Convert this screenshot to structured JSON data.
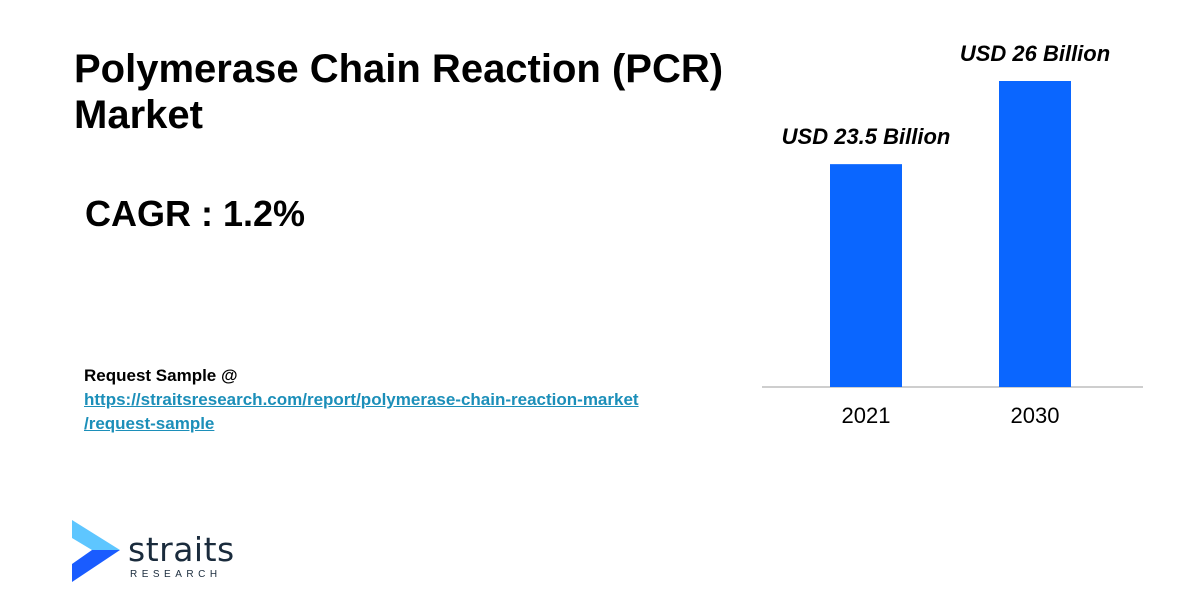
{
  "title": {
    "line1": "Polymerase Chain Reaction (PCR)",
    "line2": "Market"
  },
  "cagr": "CAGR : 1.2%",
  "request": {
    "label": "Request Sample @",
    "link_line1": "https://straitsresearch.com/report/polymerase-chain-reaction-market",
    "link_line2": "/request-sample"
  },
  "logo": {
    "name": "straits",
    "sub": "RESEARCH"
  },
  "colors": {
    "bar": "#0a66ff",
    "logo_light": "#5ec6ff",
    "logo_dark": "#1a5cff"
  },
  "chart_data": {
    "type": "bar",
    "categories": [
      "2021",
      "2030"
    ],
    "values": [
      23.5,
      26
    ],
    "data_labels": [
      "USD 23.5 Billion",
      "USD 26 Billion"
    ]
  }
}
